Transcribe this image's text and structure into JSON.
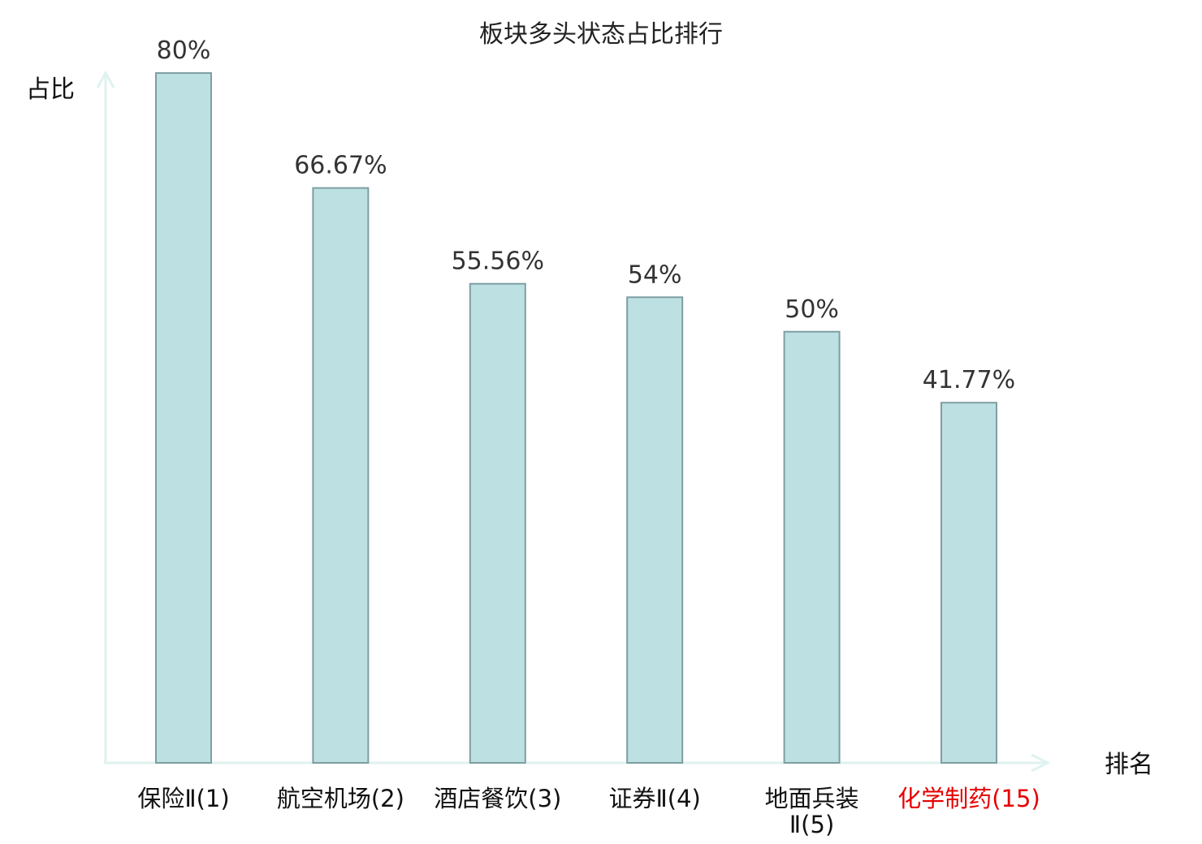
{
  "chart_data": {
    "type": "bar",
    "title": "板块多头状态占比排行",
    "ylabel": "占比",
    "xlabel": "排名",
    "ylim": [
      0,
      80
    ],
    "grid": false,
    "categories": [
      "保险Ⅱ(1)",
      "航空机场(2)",
      "酒店餐饮(3)",
      "证券Ⅱ(4)",
      "地面兵装Ⅱ(5)",
      "化学制药(15)"
    ],
    "values": [
      80,
      66.67,
      55.56,
      54,
      50,
      41.77
    ],
    "value_labels": [
      "80%",
      "66.67%",
      "55.56%",
      "54%",
      "50%",
      "41.77%"
    ],
    "highlight_index": 5,
    "colors": {
      "bar_fill": "#bde0e3",
      "bar_stroke": "#7f9ea2",
      "axis": "#dff2ef",
      "highlight_text": "#e60000",
      "text": "#111111"
    }
  }
}
